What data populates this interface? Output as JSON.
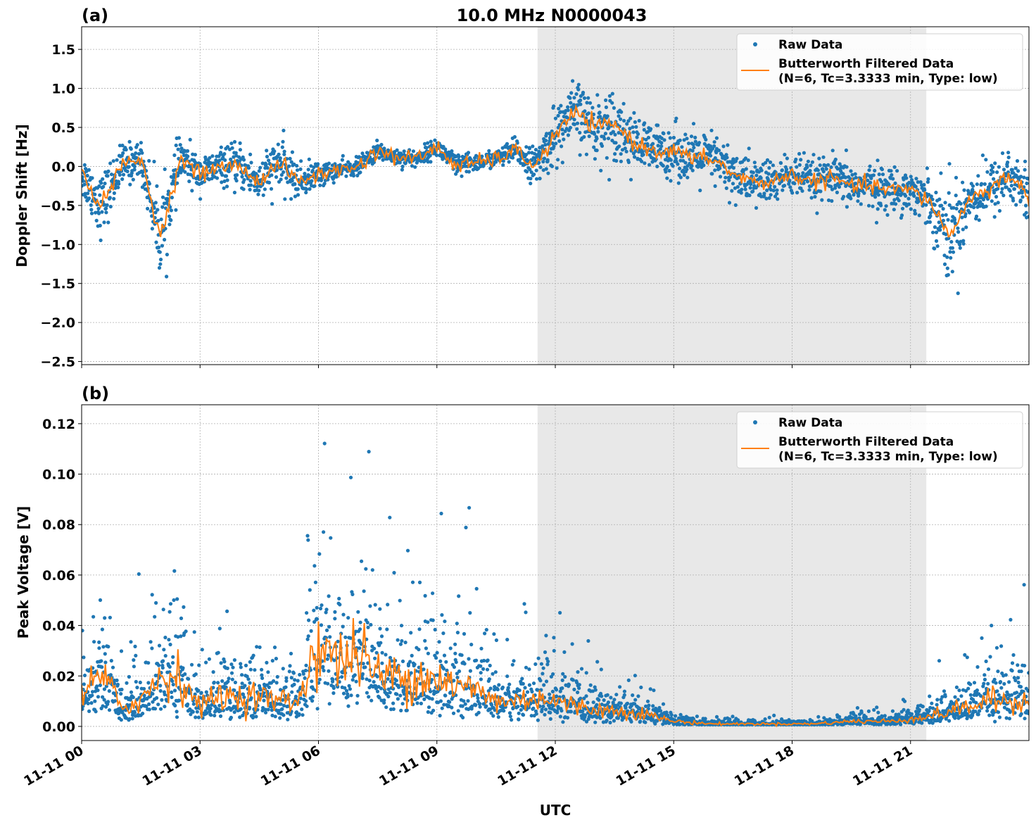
{
  "chart_data": [
    {
      "type": "scatter",
      "panel_label": "(a)",
      "title": "10.0 MHz N0000043",
      "xlabel": "",
      "ylabel": "Doppler Shift [Hz]",
      "xlim_hours": [
        0,
        24
      ],
      "ylim": [
        -2.54,
        1.79
      ],
      "yticks": [
        "1.5",
        "1.0",
        "0.5",
        "0.0",
        "−0.5",
        "−1.0",
        "−1.5",
        "−2.0",
        "−2.5"
      ],
      "ytick_values": [
        1.5,
        1.0,
        0.5,
        0.0,
        -0.5,
        -1.0,
        -1.5,
        -2.0,
        -2.5
      ],
      "grid": true,
      "shaded_span_hours": [
        11.55,
        21.4
      ],
      "legend": {
        "placement": "top-right",
        "entries": [
          "Raw Data",
          "Butterworth Filtered Data",
          "(N=6, Tc=3.3333 min, Type: low)"
        ]
      },
      "filtered_hours": [
        0,
        0.5,
        1,
        1.5,
        2,
        2.5,
        3,
        3.5,
        4,
        4.5,
        5,
        5.5,
        6,
        6.5,
        7,
        7.5,
        8,
        8.5,
        9,
        9.5,
        10,
        10.5,
        11,
        11.5,
        12,
        12.5,
        13,
        13.5,
        14,
        14.5,
        15,
        15.5,
        16,
        16.5,
        17,
        17.5,
        18,
        18.5,
        19,
        19.5,
        20,
        20.5,
        21,
        21.5,
        22,
        22.5,
        23,
        23.5,
        24
      ],
      "filtered_values": [
        -0.1,
        -0.5,
        0.0,
        0.1,
        -0.9,
        0.1,
        -0.1,
        0.0,
        0.0,
        -0.2,
        0.05,
        -0.2,
        -0.1,
        -0.05,
        0.0,
        0.2,
        0.12,
        0.1,
        0.25,
        0.0,
        0.05,
        0.1,
        0.2,
        0.0,
        0.4,
        0.7,
        0.5,
        0.55,
        0.3,
        0.2,
        0.2,
        0.1,
        0.1,
        -0.1,
        -0.2,
        -0.2,
        -0.1,
        -0.2,
        -0.15,
        -0.25,
        -0.25,
        -0.3,
        -0.3,
        -0.45,
        -0.9,
        -0.4,
        -0.3,
        -0.1,
        -0.4
      ],
      "raw_spread_hz": [
        0.25,
        0.35,
        0.25,
        0.2,
        0.5,
        0.25,
        0.2,
        0.2,
        0.25,
        0.25,
        0.3,
        0.2,
        0.15,
        0.1,
        0.1,
        0.1,
        0.1,
        0.1,
        0.1,
        0.15,
        0.1,
        0.1,
        0.15,
        0.2,
        0.35,
        0.35,
        0.35,
        0.4,
        0.3,
        0.3,
        0.3,
        0.3,
        0.3,
        0.3,
        0.3,
        0.25,
        0.25,
        0.25,
        0.25,
        0.25,
        0.25,
        0.25,
        0.25,
        0.3,
        0.6,
        0.35,
        0.3,
        0.35,
        0.35
      ],
      "colors": {
        "raw": "#1f77b4",
        "filtered": "#ff7f0e",
        "shade": "#e8e8e8"
      }
    },
    {
      "type": "scatter",
      "panel_label": "(b)",
      "xlabel": "UTC",
      "ylabel": "Peak Voltage [V]",
      "xlim_hours": [
        0,
        24
      ],
      "ylim": [
        -0.0056,
        0.1275
      ],
      "yticks": [
        "0.12",
        "0.10",
        "0.08",
        "0.06",
        "0.04",
        "0.02",
        "0.00"
      ],
      "ytick_values": [
        0.12,
        0.1,
        0.08,
        0.06,
        0.04,
        0.02,
        0.0
      ],
      "xticks": [
        "11-11 00",
        "11-11 03",
        "11-11 06",
        "11-11 09",
        "11-11 12",
        "11-11 15",
        "11-11 18",
        "11-11 21"
      ],
      "xtick_hours": [
        0,
        3,
        6,
        9,
        12,
        15,
        18,
        21
      ],
      "grid": true,
      "shaded_span_hours": [
        11.55,
        21.4
      ],
      "legend": {
        "placement": "top-right",
        "entries": [
          "Raw Data",
          "Butterworth Filtered Data",
          "(N=6, Tc=3.3333 min, Type: low)"
        ]
      },
      "filtered_hours": [
        0,
        0.5,
        1,
        1.5,
        2,
        2.5,
        3,
        3.5,
        4,
        4.5,
        5,
        5.5,
        6,
        6.5,
        7,
        7.5,
        8,
        8.5,
        9,
        9.5,
        10,
        10.5,
        11,
        11.5,
        12,
        12.5,
        13,
        13.5,
        14,
        14.5,
        15,
        15.5,
        16,
        16.5,
        17,
        17.5,
        18,
        18.5,
        19,
        19.5,
        20,
        20.5,
        21,
        21.5,
        22,
        22.5,
        23,
        23.5,
        24
      ],
      "filtered_values": [
        0.012,
        0.02,
        0.008,
        0.01,
        0.02,
        0.02,
        0.008,
        0.012,
        0.012,
        0.012,
        0.01,
        0.01,
        0.035,
        0.025,
        0.03,
        0.02,
        0.02,
        0.02,
        0.02,
        0.015,
        0.015,
        0.01,
        0.01,
        0.012,
        0.01,
        0.008,
        0.007,
        0.006,
        0.006,
        0.004,
        0.002,
        0.0015,
        0.001,
        0.001,
        0.001,
        0.001,
        0.001,
        0.001,
        0.0015,
        0.002,
        0.002,
        0.002,
        0.003,
        0.004,
        0.006,
        0.008,
        0.01,
        0.01,
        0.01
      ],
      "colors": {
        "raw": "#1f77b4",
        "filtered": "#ff7f0e",
        "shade": "#e8e8e8"
      }
    }
  ]
}
